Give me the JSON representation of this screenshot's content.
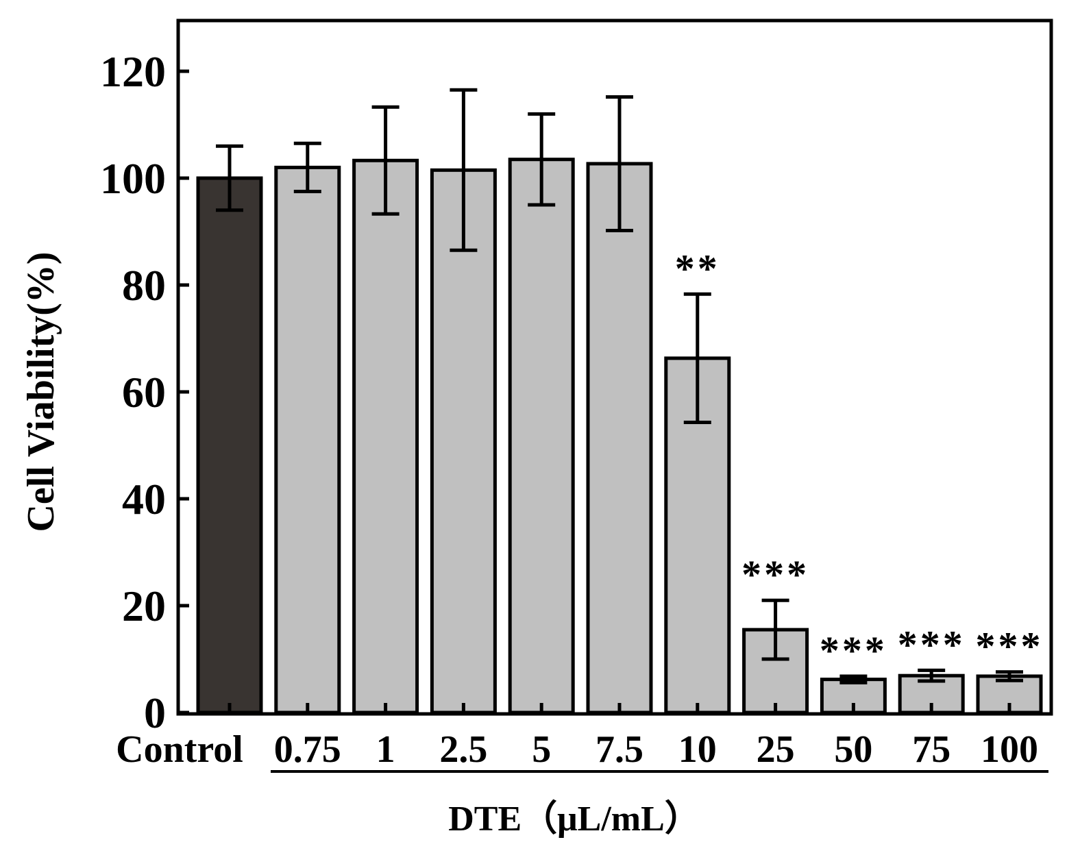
{
  "chart_data": {
    "type": "bar",
    "title": "",
    "ylabel": "Cell Viability(%)",
    "xlabel": "DTE（μL/mL）",
    "ylim": [
      0,
      130
    ],
    "yticks": [
      0,
      20,
      40,
      60,
      80,
      100,
      120
    ],
    "yticks_label": [
      "0",
      "20",
      "40",
      "60",
      "80",
      "100",
      "120"
    ],
    "grid": false,
    "categories": [
      "Control",
      "0.75",
      "1",
      "2.5",
      "5",
      "7.5",
      "10",
      "25",
      "50",
      "75",
      "100"
    ],
    "values": [
      100,
      102,
      103.3,
      101.5,
      103.5,
      102.7,
      66.3,
      15.5,
      6.2,
      6.9,
      6.8
    ],
    "errors": [
      6,
      4.5,
      10,
      15,
      8.5,
      12.5,
      12,
      5.5,
      0.6,
      1.0,
      0.8
    ],
    "significance": [
      "",
      "",
      "",
      "",
      "",
      "",
      "**",
      "***",
      "***",
      "***",
      "***"
    ],
    "bar_colors": [
      "#393431",
      "#c0c0c0",
      "#c0c0c0",
      "#c0c0c0",
      "#c0c0c0",
      "#c0c0c0",
      "#c0c0c0",
      "#c0c0c0",
      "#c0c0c0",
      "#c0c0c0",
      "#c0c0c0"
    ],
    "edge_color": "#000000"
  }
}
